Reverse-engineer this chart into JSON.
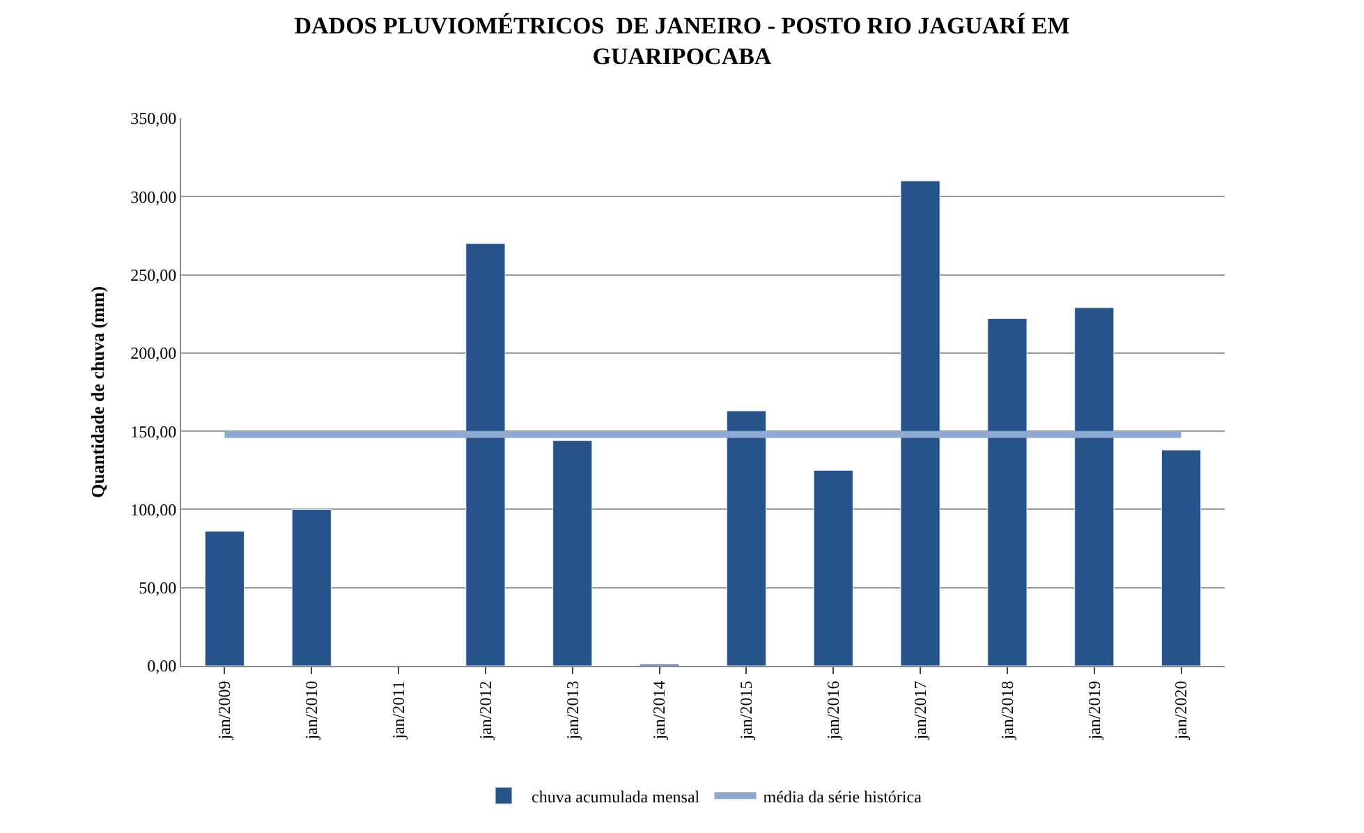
{
  "chart_data": {
    "type": "bar",
    "title": "DADOS PLUVIOMÉTRICOS  DE JANEIRO - POSTO RIO JAGUARÍ EM GUARIPOCABA",
    "ylabel": "Quantidade de chuva (mm)",
    "categories": [
      "jan/2009",
      "jan/2010",
      "jan/2011",
      "jan/2012",
      "jan/2013",
      "jan/2014",
      "jan/2015",
      "jan/2016",
      "jan/2017",
      "jan/2018",
      "jan/2019",
      "jan/2020"
    ],
    "series": [
      {
        "name": "chuva acumulada mensal",
        "color": "#26538a",
        "values": [
          86,
          100,
          null,
          270,
          144,
          1,
          163,
          125,
          310,
          222,
          229,
          138
        ]
      },
      {
        "name": "média da série histórica",
        "type": "line",
        "color": "#8eaad3",
        "marker": "none",
        "values": [
          148,
          148,
          148,
          148,
          148,
          148,
          148,
          148,
          148,
          148,
          148,
          148
        ]
      }
    ],
    "ylim": [
      0,
      350
    ],
    "yticks": [
      {
        "value": 0,
        "label": "0,00"
      },
      {
        "value": 50,
        "label": "50,00"
      },
      {
        "value": 100,
        "label": "100,00"
      },
      {
        "value": 150,
        "label": "150,00"
      },
      {
        "value": 200,
        "label": "200,00"
      },
      {
        "value": 250,
        "label": "250,00"
      },
      {
        "value": 300,
        "label": "300,00"
      },
      {
        "value": 350,
        "label": "350,00"
      }
    ],
    "grid": "y",
    "legend": "bottom"
  }
}
